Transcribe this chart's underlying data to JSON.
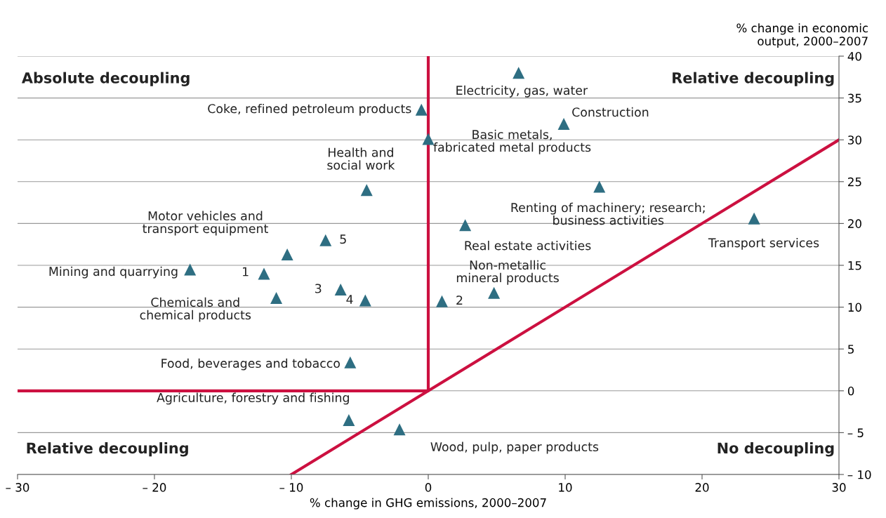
{
  "chart_data": {
    "type": "scatter",
    "xlabel": "% change in GHG emissions, 2000–2007",
    "ylabel": "% change in economic\noutput, 2000–2007",
    "xlim": [
      -30,
      30
    ],
    "ylim": [
      -10,
      40
    ],
    "xticks": [
      {
        "value": -30,
        "label": "– 30"
      },
      {
        "value": -20,
        "label": "– 20"
      },
      {
        "value": -10,
        "label": "– 10"
      },
      0,
      10,
      20,
      30
    ],
    "yticks": [
      {
        "value": -10,
        "label": "– 10"
      },
      {
        "value": -5,
        "label": "– 5"
      },
      0,
      5,
      10,
      15,
      20,
      25,
      30,
      35,
      40
    ],
    "grid": "y",
    "legend": false,
    "marker": "triangle",
    "series": [
      {
        "type": "line",
        "marker": "none",
        "color": "#cc1040",
        "x": [
          -30,
          0,
          0
        ],
        "values": [
          0,
          0,
          40
        ]
      },
      {
        "type": "line",
        "marker": "none",
        "color": "#cc1040",
        "x": [
          -10,
          30
        ],
        "values": [
          -10,
          30
        ]
      },
      {
        "color": "#2e6e82",
        "x": [
          6.6,
          -0.5,
          9.9,
          0,
          -4.5,
          12.5,
          23.8,
          2.7,
          -10.3,
          -7.5,
          -17.4,
          -12,
          -6.4,
          -11.1,
          -4.6,
          1,
          4.8,
          -5.7,
          -5.8,
          -2.1
        ],
        "values": [
          38,
          33.6,
          31.9,
          30.1,
          24,
          24.4,
          20.6,
          19.8,
          16.3,
          18,
          14.5,
          14,
          12.1,
          11.1,
          10.8,
          10.7,
          11.7,
          3.4,
          -3.5,
          -4.6
        ]
      }
    ],
    "annotations": [
      "Absolute decoupling",
      "Relative decoupling",
      "Relative decoupling",
      "No decoupling",
      {
        "text": "Electricity, gas, water",
        "x": 6.6,
        "y": 38
      },
      {
        "text": "Coke, refined petroleum products",
        "x": -0.5,
        "y": 33.6
      },
      {
        "text": "Construction",
        "x": 9.9,
        "y": 31.9
      },
      {
        "text": "Basic metals,\nfabricated metal products",
        "x": 0,
        "y": 30.1
      },
      {
        "text": "Health and\nsocial work",
        "x": -4.5,
        "y": 24
      },
      {
        "text": "Renting of machinery; research;\nbusiness activities",
        "x": 12.5,
        "y": 24.4
      },
      {
        "text": "Transport services",
        "x": 23.8,
        "y": 20.6
      },
      {
        "text": "Real estate activities",
        "x": 2.7,
        "y": 19.8
      },
      {
        "text": "Motor vehicles and\ntransport equipment",
        "x": -10.3,
        "y": 16.3
      },
      {
        "text": "5",
        "x": -7.5,
        "y": 18
      },
      {
        "text": "Mining and quarrying",
        "x": -17.4,
        "y": 14.5
      },
      {
        "text": "1",
        "x": -12,
        "y": 14
      },
      {
        "text": "3",
        "x": -6.4,
        "y": 12.1
      },
      {
        "text": "4",
        "x": -4.6,
        "y": 10.8
      },
      {
        "text": "2",
        "x": 1,
        "y": 10.7
      },
      {
        "text": "Chemicals and\nchemical products",
        "x": -11.1,
        "y": 11.1
      },
      {
        "text": "Non-metallic\nmineral products",
        "x": 4.8,
        "y": 11.7
      },
      {
        "text": "Food, beverages and tobacco",
        "x": -5.7,
        "y": 3.4
      },
      {
        "text": "Agriculture, forestry and fishing",
        "x": -5.8,
        "y": -3.5
      },
      {
        "text": "Wood, pulp, paper products",
        "x": -2.1,
        "y": -4.6
      }
    ]
  }
}
